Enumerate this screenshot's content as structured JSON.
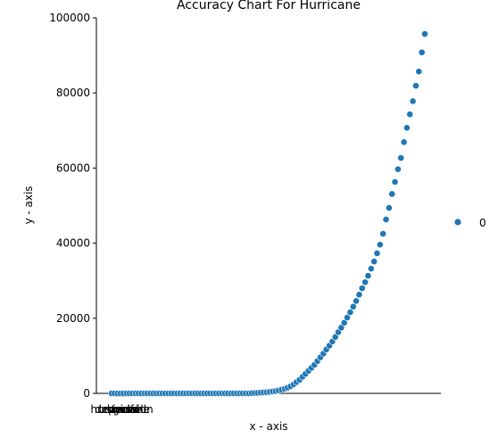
{
  "chart_data": {
    "type": "scatter",
    "title": "Accuracy Chart For Hurricane",
    "xlabel": "x - axis",
    "ylabel": "y - axis",
    "ylim": [
      0,
      100000
    ],
    "yticks": [
      0,
      20000,
      40000,
      60000,
      80000,
      100000
    ],
    "x_category_labels": [
      "hurricane",
      "tropical",
      "storm",
      "depression",
      "landfall",
      "cyclone"
    ],
    "legend": {
      "label": "0",
      "placement": "right"
    },
    "grid": false,
    "point_color": "#1f77b4",
    "series": [
      {
        "name": "0",
        "y": [
          0,
          0,
          0,
          0,
          0,
          0,
          0,
          0,
          0,
          0,
          0,
          0,
          0,
          0,
          0,
          0,
          0,
          0,
          0,
          0,
          0,
          0,
          0,
          0,
          0,
          0,
          0,
          0,
          0,
          0,
          0,
          0,
          0,
          0,
          0,
          0,
          0,
          0,
          0,
          0,
          0,
          0,
          0,
          0,
          0,
          0,
          0,
          50,
          100,
          150,
          200,
          250,
          300,
          400,
          500,
          600,
          800,
          1000,
          1200,
          1500,
          1900,
          2400,
          3000,
          3600,
          4400,
          5200,
          6000,
          6800,
          7600,
          8600,
          9600,
          10600,
          11700,
          12700,
          13800,
          15000,
          16300,
          17500,
          18800,
          20200,
          21600,
          23100,
          24600,
          26300,
          28000,
          29600,
          31300,
          33200,
          35100,
          37300,
          39600,
          42500,
          46300,
          49400,
          53100,
          56300,
          59700,
          62700,
          66900,
          70700,
          74300,
          77800,
          81900,
          85700,
          90800,
          95700
        ]
      }
    ]
  }
}
